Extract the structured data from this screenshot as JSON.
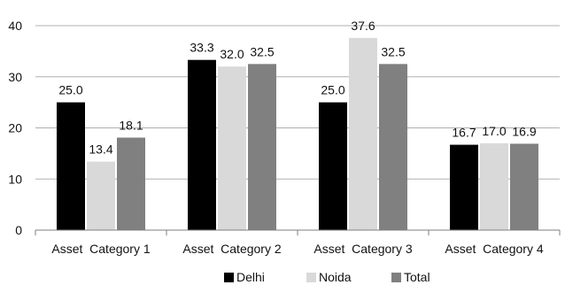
{
  "title": "",
  "chart_data": {
    "type": "bar",
    "title": "",
    "xlabel": "",
    "ylabel": "",
    "categories": [
      "Asset  Category 1",
      "Asset  Category 2",
      "Asset  Category 3",
      "Asset  Category 4"
    ],
    "series": [
      {
        "name": "Delhi",
        "values": [
          25.0,
          33.3,
          25.0,
          16.7
        ],
        "labels": [
          "25.0",
          "33.3",
          "25.0",
          "16.7"
        ],
        "color": "#000000"
      },
      {
        "name": "Noida",
        "values": [
          13.4,
          32.0,
          37.6,
          17.0
        ],
        "labels": [
          "13.4",
          "32.0",
          "37.6",
          "17.0"
        ],
        "color": "#d9d9d9"
      },
      {
        "name": "Total",
        "values": [
          18.1,
          32.5,
          32.5,
          16.9
        ],
        "labels": [
          "18.1",
          "32.5",
          "32.5",
          "16.9"
        ],
        "color": "#808080"
      }
    ],
    "yticks": [
      "0",
      "10",
      "20",
      "30",
      "40"
    ],
    "ylim": [
      0,
      40
    ],
    "grid": true,
    "legend": "bottom"
  }
}
